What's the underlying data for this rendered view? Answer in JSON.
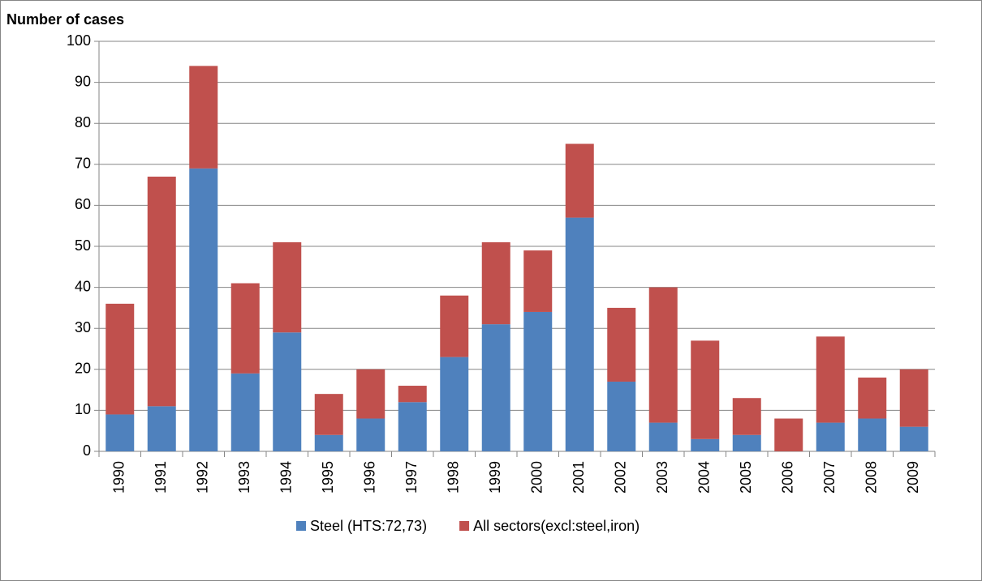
{
  "chart_data": {
    "type": "stacked_bar",
    "y_label": "Number of cases",
    "categories": [
      "1990",
      "1991",
      "1992",
      "1993",
      "1994",
      "1995",
      "1996",
      "1997",
      "1998",
      "1999",
      "2000",
      "2001",
      "2002",
      "2003",
      "2004",
      "2005",
      "2006",
      "2007",
      "2008",
      "2009"
    ],
    "series": [
      {
        "name": "Steel (HTS:72,73)",
        "color": "#4f81bd",
        "values": [
          9,
          11,
          69,
          19,
          29,
          4,
          8,
          12,
          23,
          31,
          34,
          57,
          17,
          7,
          3,
          4,
          0,
          7,
          8,
          6
        ]
      },
      {
        "name": "All sectors(excl:steel,iron)",
        "color": "#c0504d",
        "values": [
          27,
          56,
          25,
          22,
          22,
          10,
          12,
          4,
          15,
          20,
          15,
          18,
          18,
          33,
          24,
          9,
          8,
          21,
          10,
          14
        ]
      }
    ],
    "ylim": [
      0,
      100
    ],
    "yticks": [
      0,
      10,
      20,
      30,
      40,
      50,
      60,
      70,
      80,
      90,
      100
    ],
    "grid": true,
    "legend": "bottom"
  }
}
